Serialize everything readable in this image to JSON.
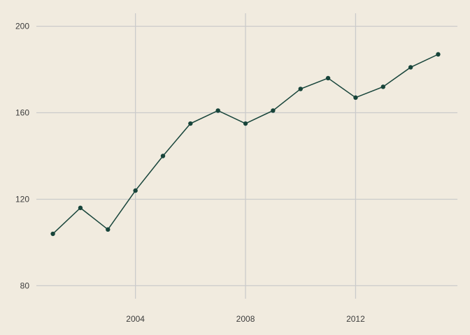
{
  "chart_data": {
    "type": "line",
    "title": "",
    "xlabel": "",
    "ylabel": "",
    "x": [
      2001,
      2002,
      2003,
      2004,
      2005,
      2006,
      2007,
      2008,
      2009,
      2010,
      2011,
      2012,
      2013,
      2014,
      2015
    ],
    "series": [
      {
        "values": [
          104,
          116,
          106,
          124,
          140,
          155,
          161,
          155,
          161,
          171,
          176,
          167,
          172,
          181,
          187
        ]
      }
    ],
    "xlim": [
      2000.4,
      2015.7
    ],
    "ylim": [
      74,
      206
    ],
    "xticks": [
      2004,
      2008,
      2012
    ],
    "yticks": [
      80,
      120,
      160,
      200
    ],
    "xtick_labels": [
      "2004",
      "2008",
      "2012"
    ],
    "ytick_labels": [
      "80",
      "120",
      "160",
      "200"
    ],
    "grid": true,
    "legend": "none",
    "colors": {
      "background": "#f1ebdf",
      "line": "#17443a",
      "grid": "#cbcbcb",
      "text": "#3c3c3c"
    }
  }
}
